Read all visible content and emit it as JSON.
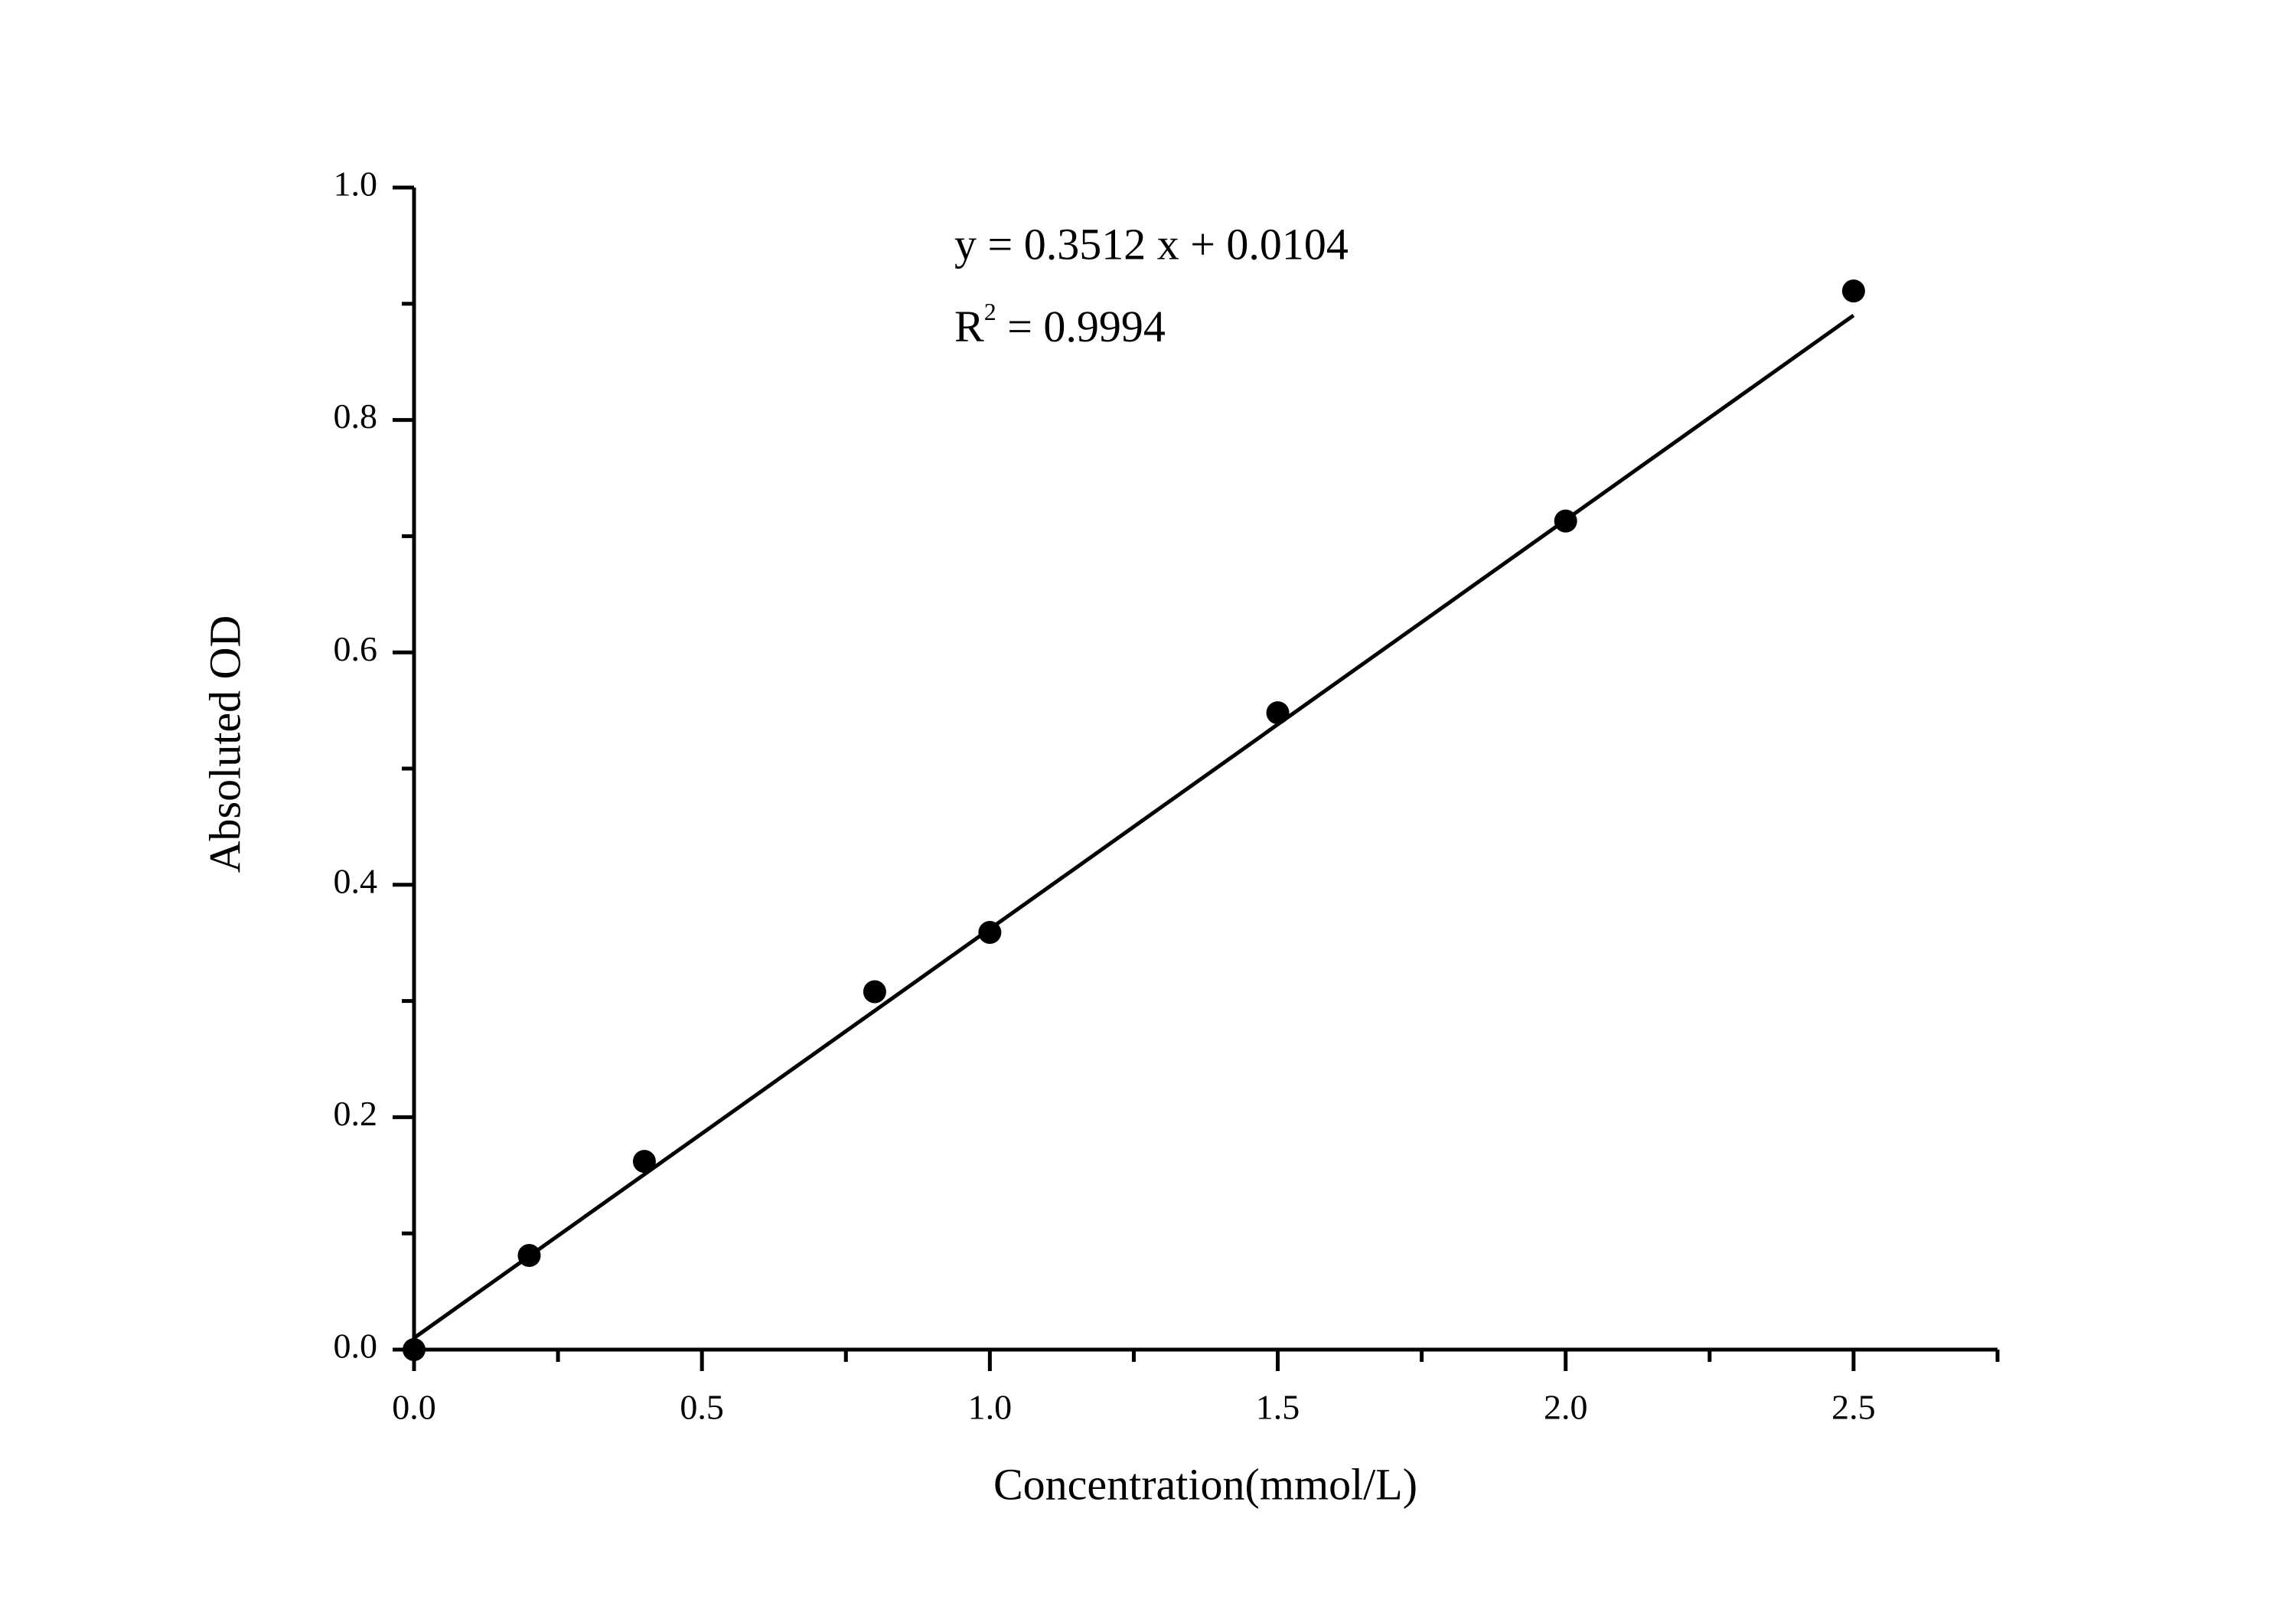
{
  "chart_data": {
    "type": "scatter",
    "x_label": "Concentration(mmol/L)",
    "y_label": "Absoluted OD",
    "equation": "y = 0.3512 x + 0.0104",
    "r2": {
      "base": "R",
      "sup": "2",
      "rest": " = 0.9994"
    },
    "series": [
      {
        "mode": "markers",
        "color": "#000000",
        "x": [
          0,
          0.2,
          0.4,
          0.8,
          1.0,
          1.5,
          2.0,
          2.5
        ],
        "values": [
          0,
          0.081,
          0.162,
          0.308,
          0.359,
          0.548,
          0.713,
          0.911
        ]
      },
      {
        "mode": "line",
        "color": "#000000",
        "x": [
          0,
          2.5
        ],
        "values": [
          0.01,
          0.89
        ]
      }
    ],
    "xlim": [
      0,
      2.75
    ],
    "ylim": [
      0,
      1.0
    ],
    "xticks": [
      {
        "value": 0,
        "label": "0.0"
      },
      0.5,
      {
        "value": 1,
        "label": "1.0"
      },
      1.5,
      {
        "value": 2,
        "label": "2.0"
      },
      2.5
    ],
    "yticks": [
      {
        "value": 0,
        "label": "0.0"
      },
      0.2,
      0.4,
      0.6,
      0.8,
      {
        "value": 1,
        "label": "1.0"
      }
    ],
    "xminor_ticks": [
      0.25,
      0.75,
      1.25,
      1.75,
      2.25,
      2.75
    ],
    "yminor_ticks": [
      0.1,
      0.3,
      0.5,
      0.7,
      0.9
    ]
  }
}
